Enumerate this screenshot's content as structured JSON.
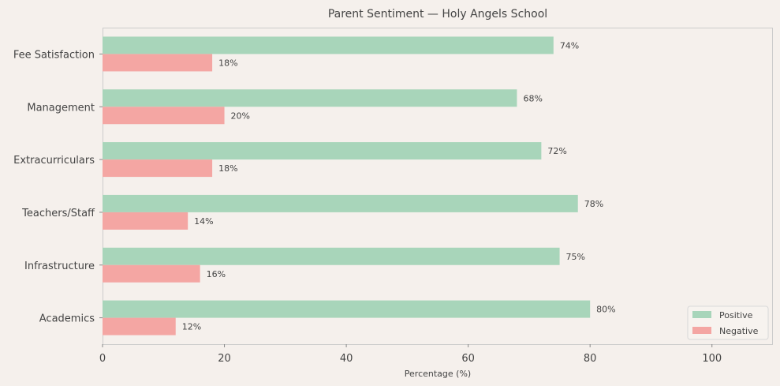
{
  "chart_data": {
    "type": "bar",
    "orientation": "horizontal",
    "title": "Parent Sentiment — Holy Angels School",
    "xlabel": "Percentage (%)",
    "ylabel": "",
    "xlim": [
      0,
      110
    ],
    "xticks": [
      0,
      20,
      40,
      60,
      80,
      100
    ],
    "categories": [
      "Fee Satisfaction",
      "Management",
      "Extracurriculars",
      "Teachers/Staff",
      "Infrastructure",
      "Academics"
    ],
    "series": [
      {
        "name": "Positive",
        "color": "#a8d5ba",
        "values": [
          74,
          68,
          72,
          78,
          75,
          80
        ],
        "labels": [
          "74%",
          "68%",
          "72%",
          "78%",
          "75%",
          "80%"
        ]
      },
      {
        "name": "Negative",
        "color": "#f4a6a3",
        "values": [
          18,
          20,
          18,
          14,
          16,
          12
        ],
        "labels": [
          "18%",
          "20%",
          "18%",
          "14%",
          "16%",
          "12%"
        ]
      }
    ],
    "grid": false,
    "legend_position": "bottom-right"
  }
}
